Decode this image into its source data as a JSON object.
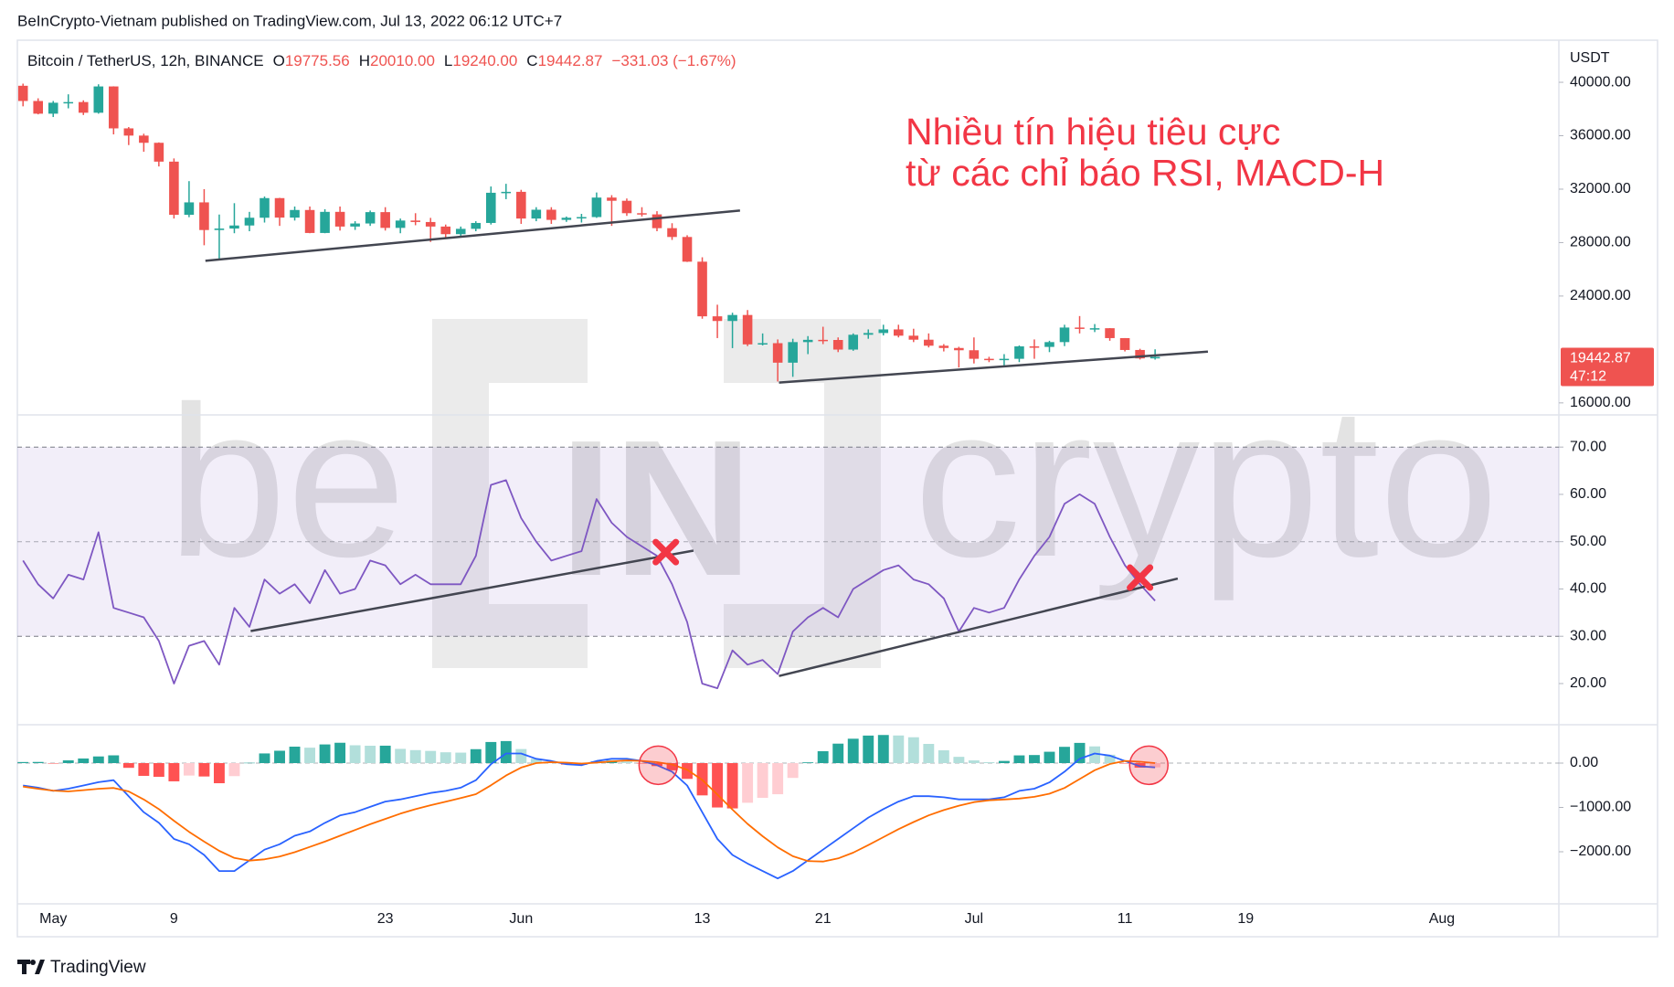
{
  "header": {
    "published": "BeInCrypto-Vietnam published on TradingView.com, Jul 13, 2022 06:12 UTC+7"
  },
  "footer": {
    "brand": "TradingView"
  },
  "watermark": {
    "left": "be",
    "middle": "IN",
    "right": "crypto"
  },
  "chart_data": [
    {
      "type": "candlestick",
      "symbol": "Bitcoin / TetherUS, 12h, BINANCE",
      "ohlc": [
        {
          "key": "O",
          "label": "19775.56"
        },
        {
          "key": "H",
          "label": "20010.00"
        },
        {
          "key": "L",
          "label": "19240.00"
        },
        {
          "key": "C",
          "label": "19442.87"
        }
      ],
      "change_label": "−331.03 (−1.67%)",
      "currency": "USDT",
      "last_price_label": "19442.87",
      "countdown": "47:12",
      "annotation": [
        "Nhiều tín hiệu tiêu cực",
        "từ các chỉ báo RSI, MACD-H"
      ],
      "annotation_color": "#f23645",
      "colors": {
        "up": "#26a69a",
        "down": "#ef5350",
        "trendline": "#434651"
      },
      "grid": false,
      "x": [
        "2022-04-29",
        "2022-04-30",
        "2022-05-01",
        "2022-05-02",
        "2022-05-03",
        "2022-05-04",
        "2022-05-05",
        "2022-05-06",
        "2022-05-07",
        "2022-05-08",
        "2022-05-09",
        "2022-05-10",
        "2022-05-11",
        "2022-05-12",
        "2022-05-13",
        "2022-05-14",
        "2022-05-15",
        "2022-05-16",
        "2022-05-17",
        "2022-05-18",
        "2022-05-19",
        "2022-05-20",
        "2022-05-21",
        "2022-05-22",
        "2022-05-23",
        "2022-05-24",
        "2022-05-25",
        "2022-05-26",
        "2022-05-27",
        "2022-05-28",
        "2022-05-29",
        "2022-05-30",
        "2022-05-31",
        "2022-06-01",
        "2022-06-02",
        "2022-06-03",
        "2022-06-04",
        "2022-06-05",
        "2022-06-06",
        "2022-06-07",
        "2022-06-08",
        "2022-06-09",
        "2022-06-10",
        "2022-06-11",
        "2022-06-12",
        "2022-06-13",
        "2022-06-14",
        "2022-06-15",
        "2022-06-16",
        "2022-06-17",
        "2022-06-18",
        "2022-06-19",
        "2022-06-20",
        "2022-06-21",
        "2022-06-22",
        "2022-06-23",
        "2022-06-24",
        "2022-06-25",
        "2022-06-26",
        "2022-06-27",
        "2022-06-28",
        "2022-06-29",
        "2022-06-30",
        "2022-07-01",
        "2022-07-02",
        "2022-07-03",
        "2022-07-04",
        "2022-07-05",
        "2022-07-06",
        "2022-07-07",
        "2022-07-08",
        "2022-07-09",
        "2022-07-10",
        "2022-07-11",
        "2022-07-12",
        "2022-07-13"
      ],
      "open": [
        39740,
        38600,
        37650,
        38470,
        38520,
        37720,
        39690,
        36550,
        36010,
        35470,
        34060,
        30080,
        31010,
        28940,
        29050,
        29280,
        29860,
        31330,
        29870,
        30440,
        28720,
        30300,
        29200,
        29430,
        30280,
        29100,
        29650,
        29540,
        29200,
        28630,
        29030,
        29470,
        31730,
        31800,
        29800,
        30460,
        29700,
        29860,
        29910,
        31370,
        31130,
        30200,
        30110,
        29080,
        28420,
        26570,
        22480,
        22130,
        22580,
        20380,
        20470,
        19010,
        20550,
        20720,
        20710,
        19990,
        21100,
        21230,
        21500,
        21030,
        20730,
        20280,
        20110,
        19940,
        19300,
        19240,
        19300,
        20230,
        20190,
        20550,
        21640,
        21590,
        21590,
        20850,
        19960,
        19330
      ],
      "high": [
        39900,
        38800,
        38600,
        39100,
        38650,
        39850,
        39700,
        36650,
        36150,
        35500,
        34300,
        32600,
        32000,
        30100,
        30950,
        30300,
        31450,
        31350,
        30700,
        30700,
        30500,
        30700,
        29600,
        30400,
        30650,
        29800,
        30200,
        29850,
        29350,
        29200,
        29600,
        32200,
        32400,
        31950,
        30650,
        30650,
        29950,
        30150,
        31750,
        31550,
        31300,
        30650,
        30350,
        29450,
        28550,
        26900,
        23350,
        22750,
        22950,
        21200,
        20750,
        20800,
        21000,
        21700,
        20900,
        21200,
        21500,
        21850,
        21850,
        21550,
        21200,
        20400,
        20200,
        20900,
        19450,
        19650,
        20300,
        20750,
        20650,
        21850,
        22500,
        21900,
        21600,
        20850,
        20050,
        20010
      ],
      "low": [
        38200,
        37600,
        37400,
        38050,
        37550,
        37650,
        36100,
        35300,
        34800,
        33700,
        29800,
        29900,
        27800,
        26700,
        28700,
        28850,
        29500,
        29250,
        29650,
        28700,
        28700,
        28900,
        28950,
        29250,
        28900,
        28700,
        29300,
        28050,
        28300,
        28450,
        28850,
        29350,
        31250,
        29400,
        29600,
        29400,
        29550,
        29500,
        29850,
        29250,
        30000,
        29950,
        28850,
        28200,
        26550,
        22300,
        20850,
        20100,
        20250,
        20300,
        17600,
        17950,
        19650,
        20400,
        19800,
        19900,
        20800,
        21050,
        20900,
        20550,
        20150,
        19850,
        18650,
        18950,
        19050,
        18800,
        19050,
        19300,
        19800,
        20250,
        21200,
        21300,
        20650,
        19850,
        19250,
        19240
      ],
      "close": [
        38600,
        37650,
        38470,
        38520,
        37720,
        39690,
        36550,
        36010,
        35470,
        34060,
        30080,
        31010,
        28940,
        29050,
        29280,
        29860,
        31330,
        29870,
        30440,
        28720,
        30300,
        29200,
        29430,
        30280,
        29100,
        29650,
        29540,
        29200,
        28630,
        29030,
        29470,
        31730,
        31800,
        29800,
        30460,
        29700,
        29860,
        29910,
        31370,
        31130,
        30200,
        30110,
        29080,
        28420,
        26570,
        22480,
        22130,
        22580,
        20380,
        20470,
        19010,
        20550,
        20720,
        20710,
        19990,
        21100,
        21230,
        21500,
        21030,
        20730,
        20280,
        20110,
        19940,
        19300,
        19240,
        19300,
        20230,
        20190,
        20550,
        21640,
        21590,
        21590,
        20850,
        19960,
        19330,
        19442.87
      ],
      "xlim": [
        "2022-04-28T15:00",
        "2022-08-08T18:00"
      ],
      "xticks": [
        {
          "value": "2022-05-01",
          "label": "May"
        },
        {
          "value": "2022-05-09",
          "label": "9"
        },
        {
          "value": "2022-05-23",
          "label": "23"
        },
        {
          "value": "2022-06-01",
          "label": "Jun"
        },
        {
          "value": "2022-06-13",
          "label": "13"
        },
        {
          "value": "2022-06-21",
          "label": "21"
        },
        {
          "value": "2022-07-01",
          "label": "Jul"
        },
        {
          "value": "2022-07-11",
          "label": "11"
        },
        {
          "value": "2022-07-19",
          "label": "19"
        },
        {
          "value": "2022-08-01",
          "label": "Aug"
        }
      ],
      "ylim": [
        15100,
        43150
      ],
      "yticks": [
        {
          "value": 16000,
          "label": "16000.00"
        },
        {
          "value": 24000,
          "label": "24000.00"
        },
        {
          "value": 28000,
          "label": "28000.00"
        },
        {
          "value": 32000,
          "label": "32000.00"
        },
        {
          "value": 36000,
          "label": "36000.00"
        },
        {
          "value": 40000,
          "label": "40000.00"
        }
      ],
      "trendlines": [
        {
          "x": [
            "2022-05-11T02:00",
            "2022-06-15T12:00"
          ],
          "y": [
            26640,
            30400
          ]
        },
        {
          "x": [
            "2022-06-18T02:00",
            "2022-07-16T12:00"
          ],
          "y": [
            17520,
            19840
          ]
        }
      ]
    },
    {
      "type": "line",
      "color": "#7e57c2",
      "band": [
        30,
        70
      ],
      "midline": 50,
      "band_color": "#7e57c2",
      "values": [
        46,
        41,
        38,
        43,
        42,
        52,
        36,
        35,
        34,
        29,
        20,
        28,
        29,
        24,
        36,
        32,
        42,
        39,
        41,
        37,
        44,
        39,
        40,
        46,
        45,
        41,
        43,
        41,
        41,
        41,
        47,
        62,
        63,
        55,
        50,
        46,
        47,
        48,
        59,
        54,
        51,
        49,
        47,
        41,
        33,
        20,
        19,
        27,
        24,
        25,
        22,
        31,
        34,
        36,
        34,
        40,
        42,
        44,
        45,
        42,
        41,
        38,
        31,
        36,
        35,
        36,
        42,
        47,
        51,
        58,
        60,
        58,
        51,
        45,
        41,
        37.5
      ],
      "ylim": [
        11.3,
        76.8
      ],
      "yticks": [
        {
          "value": 20,
          "label": "20.00"
        },
        {
          "value": 30,
          "label": "30.00"
        },
        {
          "value": 40,
          "label": "40.00"
        },
        {
          "value": 50,
          "label": "50.00"
        },
        {
          "value": 60,
          "label": "60.00"
        },
        {
          "value": 70,
          "label": "70.00"
        }
      ],
      "trendlines": [
        {
          "x": [
            "2022-05-14T02:00",
            "2022-06-12T10:00"
          ],
          "y": [
            31.1,
            48.1
          ]
        },
        {
          "x": [
            "2022-06-18T02:00",
            "2022-07-14T12:00"
          ],
          "y": [
            21.6,
            42.2
          ]
        }
      ],
      "trendline_color": "#434651",
      "marker": "cross",
      "marker_color": "#f23645",
      "signals": [
        {
          "x": "2022-06-10T14:00",
          "y": 47.8
        },
        {
          "x": "2022-07-12T00:00",
          "y": 42.4
        }
      ]
    },
    {
      "type": "macd",
      "midline": 0,
      "histogram": {
        "values": [
          24,
          26,
          -6,
          62,
          104,
          150,
          175,
          -107,
          -288,
          -309,
          -411,
          -281,
          -302,
          -454,
          -294,
          7,
          218,
          279,
          371,
          348,
          421,
          459,
          402,
          392,
          393,
          321,
          293,
          275,
          244,
          236,
          314,
          476,
          497,
          317,
          96,
          28,
          -34,
          -38,
          38,
          56,
          36,
          -2,
          -68,
          -163,
          -356,
          -728,
          -1001,
          -1022,
          -895,
          -784,
          -702,
          -334,
          17,
          268,
          439,
          550,
          621,
          634,
          623,
          583,
          433,
          289,
          141,
          61,
          21,
          49,
          174,
          182,
          256,
          367,
          456,
          377,
          189,
          -2,
          -102,
          -96
        ],
        "colors": [
          "#26a69a",
          "#b2dfdb",
          "#ffcdd2",
          "#ff5252"
        ]
      },
      "series": [
        {
          "color": "#2962ff",
          "values": [
            -506,
            -554,
            -626,
            -578,
            -506,
            -430,
            -385,
            -747,
            -1108,
            -1349,
            -1711,
            -1831,
            -2072,
            -2434,
            -2434,
            -2193,
            -1952,
            -1831,
            -1639,
            -1542,
            -1349,
            -1181,
            -1108,
            -988,
            -867,
            -819,
            -747,
            -675,
            -626,
            -554,
            -386,
            -24,
            217,
            217,
            96,
            48,
            -24,
            -48,
            48,
            96,
            96,
            48,
            -48,
            -193,
            -506,
            -1108,
            -1711,
            -2072,
            -2265,
            -2434,
            -2602,
            -2434,
            -2193,
            -1952,
            -1711,
            -1470,
            -1229,
            -1036,
            -867,
            -747,
            -747,
            -771,
            -819,
            -819,
            -819,
            -771,
            -626,
            -578,
            -434,
            -193,
            96,
            217,
            169,
            48,
            -72,
            -96
          ]
        },
        {
          "color": "#ff6d00",
          "values": [
            -530,
            -580,
            -620,
            -640,
            -610,
            -580,
            -560,
            -640,
            -820,
            -1040,
            -1300,
            -1550,
            -1770,
            -1980,
            -2140,
            -2200,
            -2170,
            -2110,
            -2010,
            -1890,
            -1770,
            -1640,
            -1510,
            -1380,
            -1260,
            -1140,
            -1040,
            -950,
            -870,
            -790,
            -700,
            -500,
            -280,
            -100,
            0,
            20,
            10,
            -10,
            10,
            40,
            60,
            50,
            20,
            -30,
            -150,
            -380,
            -710,
            -1050,
            -1370,
            -1650,
            -1900,
            -2100,
            -2210,
            -2220,
            -2150,
            -2020,
            -1850,
            -1670,
            -1490,
            -1330,
            -1180,
            -1060,
            -960,
            -880,
            -840,
            -820,
            -800,
            -760,
            -690,
            -560,
            -360,
            -160,
            -20,
            50,
            30,
            0
          ]
        }
      ],
      "ylim": [
        -3175,
        866
      ],
      "yticks": [
        {
          "value": -2000,
          "label": "−2000.00"
        },
        {
          "value": -1000,
          "label": "−1000.00"
        },
        {
          "value": 0,
          "label": "0.00"
        }
      ],
      "marker": "circle",
      "marker_color": "#f23645",
      "signals": [
        {
          "x": "2022-06-10T02:00",
          "y": -48
        },
        {
          "x": "2022-07-12T14:00",
          "y": -48
        }
      ]
    }
  ]
}
